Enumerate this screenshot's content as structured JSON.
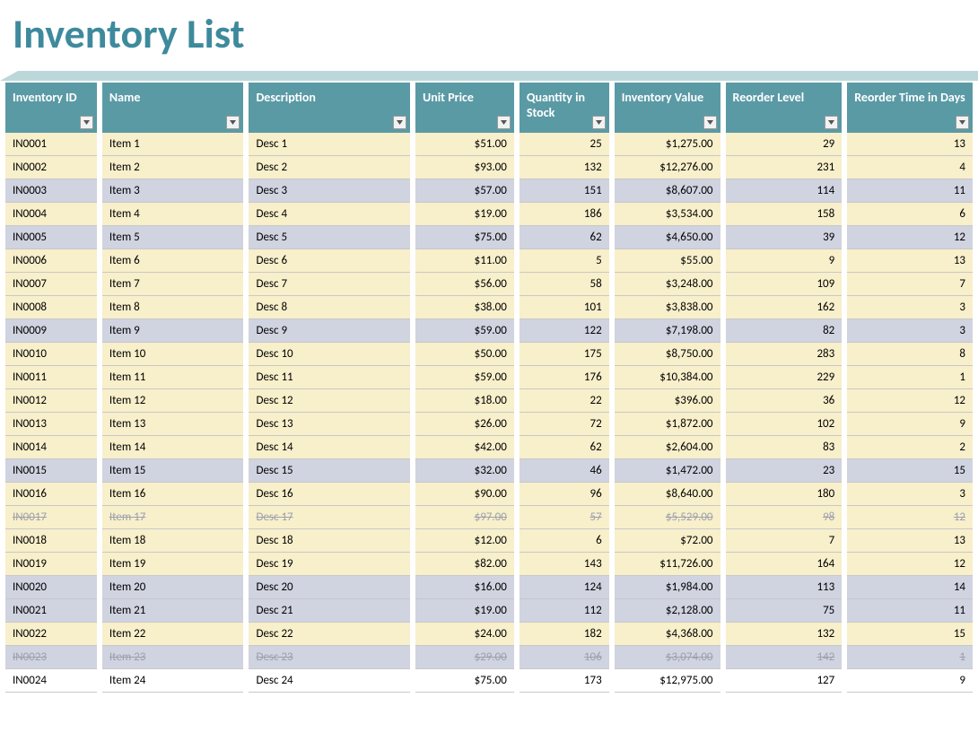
{
  "title": "Inventory List",
  "colors": {
    "title": "#3e8a9d",
    "ribbon": "#bcd7d9",
    "header_bg": "#5a9aa5",
    "header_text": "#ffffff",
    "band_cream": "#f8efcb",
    "band_lavender": "#d0d3e0",
    "band_white": "#ffffff",
    "row_border": "#c8c8c8",
    "struck_text": "#9da0ac"
  },
  "columns": [
    {
      "key": "id",
      "label": "Inventory ID",
      "class": "c-id",
      "align": "left"
    },
    {
      "key": "name",
      "label": "Name",
      "class": "c-name",
      "align": "left"
    },
    {
      "key": "desc",
      "label": "Description",
      "class": "c-desc",
      "align": "left"
    },
    {
      "key": "price",
      "label": "Unit Price",
      "class": "c-price",
      "align": "right"
    },
    {
      "key": "qty",
      "label": "Quantity in Stock",
      "class": "c-qty",
      "align": "right"
    },
    {
      "key": "value",
      "label": "Inventory Value",
      "class": "c-val",
      "align": "right"
    },
    {
      "key": "reorder",
      "label": "Reorder Level",
      "class": "c-reord",
      "align": "right"
    },
    {
      "key": "days",
      "label": "Reorder Time in Days",
      "class": "c-days",
      "align": "right"
    }
  ],
  "rows": [
    {
      "id": "IN0001",
      "name": "Item 1",
      "desc": "Desc 1",
      "price": "$51.00",
      "qty": "25",
      "value": "$1,275.00",
      "reorder": "29",
      "days": "13",
      "band": "cream",
      "struck": false
    },
    {
      "id": "IN0002",
      "name": "Item 2",
      "desc": "Desc 2",
      "price": "$93.00",
      "qty": "132",
      "value": "$12,276.00",
      "reorder": "231",
      "days": "4",
      "band": "cream",
      "struck": false
    },
    {
      "id": "IN0003",
      "name": "Item 3",
      "desc": "Desc 3",
      "price": "$57.00",
      "qty": "151",
      "value": "$8,607.00",
      "reorder": "114",
      "days": "11",
      "band": "lav",
      "struck": false
    },
    {
      "id": "IN0004",
      "name": "Item 4",
      "desc": "Desc 4",
      "price": "$19.00",
      "qty": "186",
      "value": "$3,534.00",
      "reorder": "158",
      "days": "6",
      "band": "cream",
      "struck": false
    },
    {
      "id": "IN0005",
      "name": "Item 5",
      "desc": "Desc 5",
      "price": "$75.00",
      "qty": "62",
      "value": "$4,650.00",
      "reorder": "39",
      "days": "12",
      "band": "lav",
      "struck": false
    },
    {
      "id": "IN0006",
      "name": "Item 6",
      "desc": "Desc 6",
      "price": "$11.00",
      "qty": "5",
      "value": "$55.00",
      "reorder": "9",
      "days": "13",
      "band": "cream",
      "struck": false
    },
    {
      "id": "IN0007",
      "name": "Item 7",
      "desc": "Desc 7",
      "price": "$56.00",
      "qty": "58",
      "value": "$3,248.00",
      "reorder": "109",
      "days": "7",
      "band": "cream",
      "struck": false
    },
    {
      "id": "IN0008",
      "name": "Item 8",
      "desc": "Desc 8",
      "price": "$38.00",
      "qty": "101",
      "value": "$3,838.00",
      "reorder": "162",
      "days": "3",
      "band": "cream",
      "struck": false
    },
    {
      "id": "IN0009",
      "name": "Item 9",
      "desc": "Desc 9",
      "price": "$59.00",
      "qty": "122",
      "value": "$7,198.00",
      "reorder": "82",
      "days": "3",
      "band": "lav",
      "struck": false
    },
    {
      "id": "IN0010",
      "name": "Item 10",
      "desc": "Desc 10",
      "price": "$50.00",
      "qty": "175",
      "value": "$8,750.00",
      "reorder": "283",
      "days": "8",
      "band": "cream",
      "struck": false
    },
    {
      "id": "IN0011",
      "name": "Item 11",
      "desc": "Desc 11",
      "price": "$59.00",
      "qty": "176",
      "value": "$10,384.00",
      "reorder": "229",
      "days": "1",
      "band": "cream",
      "struck": false
    },
    {
      "id": "IN0012",
      "name": "Item 12",
      "desc": "Desc 12",
      "price": "$18.00",
      "qty": "22",
      "value": "$396.00",
      "reorder": "36",
      "days": "12",
      "band": "cream",
      "struck": false
    },
    {
      "id": "IN0013",
      "name": "Item 13",
      "desc": "Desc 13",
      "price": "$26.00",
      "qty": "72",
      "value": "$1,872.00",
      "reorder": "102",
      "days": "9",
      "band": "cream",
      "struck": false
    },
    {
      "id": "IN0014",
      "name": "Item 14",
      "desc": "Desc 14",
      "price": "$42.00",
      "qty": "62",
      "value": "$2,604.00",
      "reorder": "83",
      "days": "2",
      "band": "cream",
      "struck": false
    },
    {
      "id": "IN0015",
      "name": "Item 15",
      "desc": "Desc 15",
      "price": "$32.00",
      "qty": "46",
      "value": "$1,472.00",
      "reorder": "23",
      "days": "15",
      "band": "lav",
      "struck": false
    },
    {
      "id": "IN0016",
      "name": "Item 16",
      "desc": "Desc 16",
      "price": "$90.00",
      "qty": "96",
      "value": "$8,640.00",
      "reorder": "180",
      "days": "3",
      "band": "cream",
      "struck": false
    },
    {
      "id": "IN0017",
      "name": "Item 17",
      "desc": "Desc 17",
      "price": "$97.00",
      "qty": "57",
      "value": "$5,529.00",
      "reorder": "98",
      "days": "12",
      "band": "cream",
      "struck": true
    },
    {
      "id": "IN0018",
      "name": "Item 18",
      "desc": "Desc 18",
      "price": "$12.00",
      "qty": "6",
      "value": "$72.00",
      "reorder": "7",
      "days": "13",
      "band": "cream",
      "struck": false
    },
    {
      "id": "IN0019",
      "name": "Item 19",
      "desc": "Desc 19",
      "price": "$82.00",
      "qty": "143",
      "value": "$11,726.00",
      "reorder": "164",
      "days": "12",
      "band": "cream",
      "struck": false
    },
    {
      "id": "IN0020",
      "name": "Item 20",
      "desc": "Desc 20",
      "price": "$16.00",
      "qty": "124",
      "value": "$1,984.00",
      "reorder": "113",
      "days": "14",
      "band": "lav",
      "struck": false
    },
    {
      "id": "IN0021",
      "name": "Item 21",
      "desc": "Desc 21",
      "price": "$19.00",
      "qty": "112",
      "value": "$2,128.00",
      "reorder": "75",
      "days": "11",
      "band": "lav",
      "struck": false
    },
    {
      "id": "IN0022",
      "name": "Item 22",
      "desc": "Desc 22",
      "price": "$24.00",
      "qty": "182",
      "value": "$4,368.00",
      "reorder": "132",
      "days": "15",
      "band": "cream",
      "struck": false
    },
    {
      "id": "IN0023",
      "name": "Item 23",
      "desc": "Desc 23",
      "price": "$29.00",
      "qty": "106",
      "value": "$3,074.00",
      "reorder": "142",
      "days": "1",
      "band": "lav",
      "struck": true
    },
    {
      "id": "IN0024",
      "name": "Item 24",
      "desc": "Desc 24",
      "price": "$75.00",
      "qty": "173",
      "value": "$12,975.00",
      "reorder": "127",
      "days": "9",
      "band": "white",
      "struck": false
    }
  ]
}
